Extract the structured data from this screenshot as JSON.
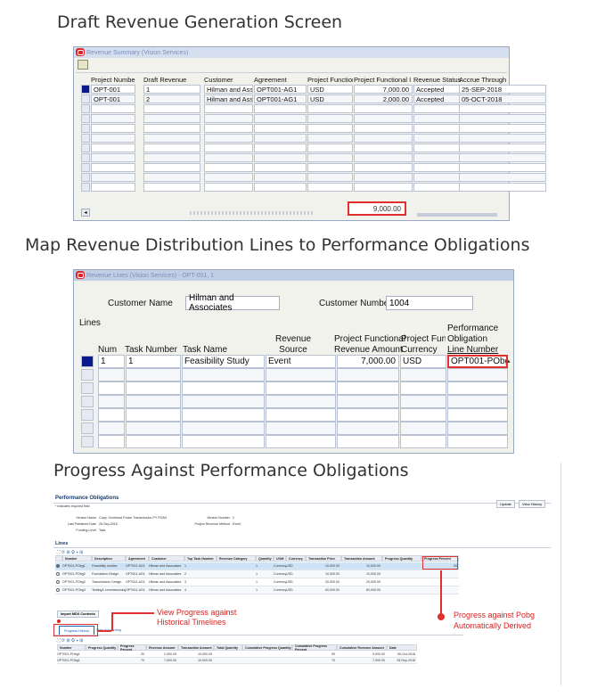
{
  "section1": {
    "title": "Draft Revenue Generation Screen",
    "window_title": "Revenue Summary (Vision Services)",
    "columns": [
      "Project Number",
      "Draft Revenue",
      "Customer",
      "Agreement",
      "Project Functior",
      "Project Functional I",
      "Revenue Status",
      "Accrue Through"
    ],
    "rows": [
      [
        "OPT-001",
        "1",
        "Hilman and Associ",
        "OPT001-AG1",
        "USD",
        "7,000.00",
        "Accepted",
        "25-SEP-2018"
      ],
      [
        "OPT-001",
        "2",
        "Hilman and Associ",
        "OPT001-AG1",
        "USD",
        "2,000.00",
        "Accepted",
        "05-OCT-2018"
      ]
    ],
    "total": "9,000.00"
  },
  "section2": {
    "title": "Map Revenue Distribution Lines to Performance Obligations",
    "window_title": "Revenue Lines (Vision Services) - OPT-001, 1",
    "customer_name_label": "Customer Name",
    "customer_name": "Hilman and Associates",
    "customer_number_label": "Customer Number",
    "customer_number": "1004",
    "lines_label": "Lines",
    "columns": {
      "num": "Num",
      "task_number": "Task Number",
      "task_name": "Task Name",
      "revenue_source_1": "Revenue",
      "revenue_source_2": "Source",
      "pf_amount_1": "Project Functional",
      "pf_amount_2": "Revenue Amount",
      "pf_currency_1": "Project Funct",
      "pf_currency_2": "Currency",
      "obligation_1": "Performance",
      "obligation_2": "Obligation",
      "obligation_3": "Line Number"
    },
    "row": {
      "num": "1",
      "task_number": "1",
      "task_name": "Feasibility Study",
      "revenue_source": "Event",
      "amount": "7,000.00",
      "currency": "USD",
      "obligation": "OPT001-PObg1"
    }
  },
  "section3": {
    "title": "Progress Against Performance Obligations",
    "page_title": "Performance Obligations",
    "required_note": "* Indicates required field",
    "buttons": {
      "update": "Update",
      "view_history": "View History"
    },
    "header_fields": [
      {
        "label": "Version Name",
        "value": "Copy: Overhead Power Transmission PY PO8G"
      },
      {
        "label": "Last Published Date",
        "value": "25-Sep-2018"
      },
      {
        "label": "Funding Level",
        "value": "Task"
      }
    ],
    "header_fields_right": [
      {
        "label": "Version Number",
        "value": "2"
      },
      {
        "label": "Project Revenue Method",
        "value": "Event"
      }
    ],
    "lines_title": "Lines",
    "columns": [
      "Number",
      "Description",
      "Agreement",
      "Customer",
      "Top Task Number",
      "Revenue Category",
      "Quantity",
      "UOM",
      "Currency",
      "Transaction Price",
      "Transaction Amount",
      "Progress Quantity",
      "Progress Percent"
    ],
    "rows": [
      [
        "OPT001-PObg1",
        "Feasibility studies",
        "OPT001-AG1",
        "Hilman and Associates",
        "1",
        "",
        "1",
        "Currency",
        "USD",
        "10,000.00",
        "10,000.00",
        "",
        "90"
      ],
      [
        "OPT001-PObg2",
        "Foundation Design",
        "OPT001-AG1",
        "Hilman and Associates",
        "2",
        "",
        "1",
        "Currency",
        "USD",
        "10,000.00",
        "10,000.00",
        "",
        ""
      ],
      [
        "OPT001-PObg3",
        "Transmission Design",
        "OPT001-AG1",
        "Hilman and Associates",
        "3",
        "",
        "1",
        "Currency",
        "USD",
        "20,000.00",
        "20,000.00",
        "",
        ""
      ],
      [
        "OPT001-PObg4",
        "Testing& commissioning",
        "OPT001-AG1",
        "Hilman and Associates",
        "4",
        "",
        "1",
        "Currency",
        "USD",
        "60,000.00",
        "60,000.00",
        "",
        ""
      ]
    ],
    "import_button": "Import MDX Contents",
    "tabs": [
      "Progress History",
      "View Accounting"
    ],
    "history_columns": [
      "Number",
      "Progress Quantity",
      "Progress Percent",
      "Revenue Amount",
      "Transaction Amount",
      "Total Quantity",
      "Cumulative Progress Quantity",
      "Cumulative Progress Percent",
      "Cumulative Revenue Amount",
      "Date"
    ],
    "history_rows": [
      [
        "OPT001-PObg1",
        "",
        "20",
        "2,000.00",
        "10,000.00",
        "",
        "",
        "90",
        "9,000.00",
        "05-Oct-2018"
      ],
      [
        "OPT001-PObg1",
        "",
        "70",
        "7,000.00",
        "10,000.00",
        "",
        "",
        "70",
        "7,000.00",
        "25-Sep-2018"
      ]
    ],
    "annotation_history": [
      "View Progress against",
      "Historical Timelines"
    ],
    "annotation_pobg": [
      "Progress against Pobg",
      "Automatically Derived"
    ]
  }
}
